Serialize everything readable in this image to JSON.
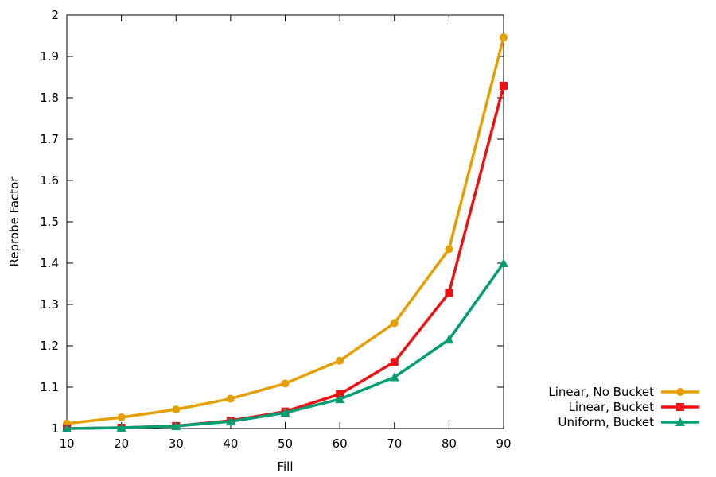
{
  "chart_data": {
    "type": "line",
    "title": "",
    "xlabel": "Fill",
    "ylabel": "Reprobe Factor",
    "x": [
      10,
      20,
      30,
      40,
      50,
      60,
      70,
      80,
      90
    ],
    "xlim": [
      10,
      90
    ],
    "ylim": [
      1,
      2
    ],
    "x_ticks": [
      "10",
      "20",
      "30",
      "40",
      "50",
      "60",
      "70",
      "80",
      "90"
    ],
    "y_ticks": [
      "1",
      "1.1",
      "1.2",
      "1.3",
      "1.4",
      "1.5",
      "1.6",
      "1.7",
      "1.8",
      "1.9",
      "2"
    ],
    "grid": false,
    "legend_position": "bottom-right, outside",
    "series": [
      {
        "name": "Linear, No Bucket",
        "color": "#e69f00",
        "marker": "circle",
        "values": [
          1.012,
          1.027,
          1.046,
          1.072,
          1.109,
          1.164,
          1.255,
          1.434,
          1.946
        ]
      },
      {
        "name": "Linear, Bucket",
        "color": "#ee1111",
        "marker": "square",
        "values": [
          1.0,
          1.002,
          1.006,
          1.019,
          1.041,
          1.083,
          1.161,
          1.328,
          1.829
        ]
      },
      {
        "name": "Uniform, Bucket",
        "color": "#009e73",
        "marker": "triangle",
        "values": [
          1.0,
          1.002,
          1.006,
          1.017,
          1.038,
          1.071,
          1.124,
          1.215,
          1.4
        ]
      }
    ]
  }
}
